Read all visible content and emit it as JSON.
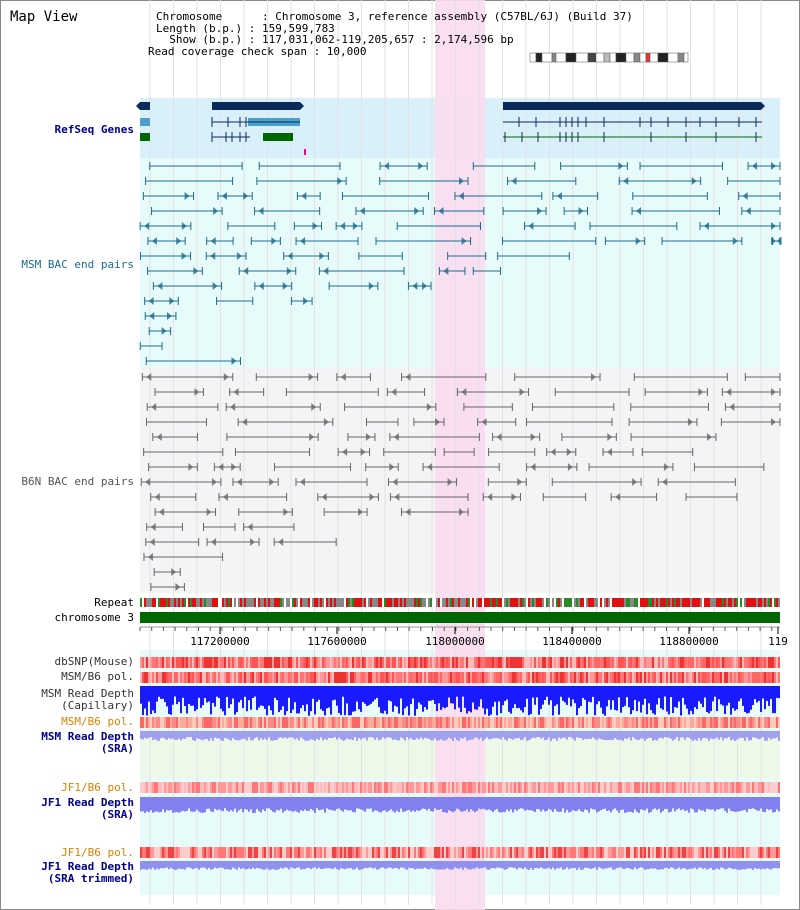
{
  "panel": {
    "title": "Map View"
  },
  "info": {
    "chromosome_line": "Chromosome      : Chromosome 3, reference assembly (C57BL/6J) (Build 37)",
    "length_line": "Length (b.p.) : 159,599,783",
    "show_line": "  Show (b.p.) : 117,031,062-119,205,657 : 2,174,596 bp",
    "coverage_line": "Read coverage check span : 10,000"
  },
  "tracks": {
    "refseq": "RefSeq Genes",
    "msm_bac": "MSM BAC end pairs",
    "b6n_bac": "B6N BAC end pairs",
    "repeat": "Repeat",
    "chromosome": "chromosome 3",
    "dbsnp": "dbSNP(Mouse)",
    "msm_b6_pol": "MSM/B6 pol.",
    "msm_read_depth_cap": "MSM Read Depth\n(Capillary)",
    "msm_b6_pol_2": "MSM/B6 pol.",
    "msm_read_depth_sra": "MSM Read Depth\n(SRA)",
    "jf1_b6_pol": "JF1/B6 pol.",
    "jf1_read_depth_sra": "JF1 Read Depth\n(SRA)",
    "jf1_b6_pol_2": "JF1/B6 pol.",
    "jf1_read_depth_trim": "JF1 Read Depth\n(SRA trimmed)"
  },
  "axis": {
    "ticks": [
      "117200000",
      "117600000",
      "118000000",
      "118400000",
      "118800000",
      "119"
    ]
  },
  "colors": {
    "refseq_bg": "#d9f0fa",
    "msm_bg": "#e8fbfb",
    "b6n_bg": "#f4f4f7",
    "highlight": "#f9dcf0",
    "gene_dark": "#0b2a5a",
    "gene_mid": "#4a9ec8",
    "gene_green": "#006600",
    "msm_pair": "#1b6c8c",
    "b6n_pair": "#666666",
    "label_blue": "#00008b",
    "label_orange": "#e08000",
    "label_teal": "#1b6c8c",
    "depth_blue": "#1a1aff",
    "depth_light": "#8080f0"
  }
}
